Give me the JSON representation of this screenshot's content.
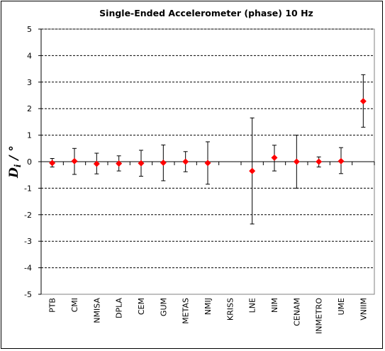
{
  "chart_data": {
    "type": "scatter",
    "title": "Single-Ended  Accelerometer  (phase)   10 Hz",
    "ylabel": {
      "main": "D",
      "sub": "i",
      "rest": " / °"
    },
    "xlabel": "",
    "ylim": [
      -5,
      5
    ],
    "yticks": [
      "5",
      "4",
      "3",
      "2",
      "1",
      "0",
      "-1",
      "-2",
      "-3",
      "-4",
      "-5"
    ],
    "grid": "horizontal dashed",
    "marker_color": "#ff0000",
    "errorbar_color": "#000000",
    "categories": [
      "PTB",
      "CMI",
      "NMISA",
      "DPLA",
      "CEM",
      "GUM",
      "METAS",
      "NMIJ",
      "KRISS",
      "LNE",
      "NIM",
      "CENAM",
      "INMETRO",
      "UME",
      "VNIIM"
    ],
    "values": [
      -0.05,
      0.02,
      -0.08,
      -0.07,
      -0.06,
      -0.04,
      0.0,
      -0.05,
      null,
      -0.35,
      0.15,
      0.0,
      0.0,
      0.02,
      2.28
    ],
    "err_upper": [
      0.12,
      0.5,
      0.32,
      0.22,
      0.43,
      0.63,
      0.38,
      0.75,
      null,
      1.65,
      0.62,
      1.0,
      0.18,
      0.53,
      3.28
    ],
    "err_lower": [
      -0.2,
      -0.48,
      -0.46,
      -0.35,
      -0.55,
      -0.72,
      -0.38,
      -0.85,
      null,
      -2.35,
      -0.35,
      -1.0,
      -0.2,
      -0.45,
      1.3
    ]
  }
}
